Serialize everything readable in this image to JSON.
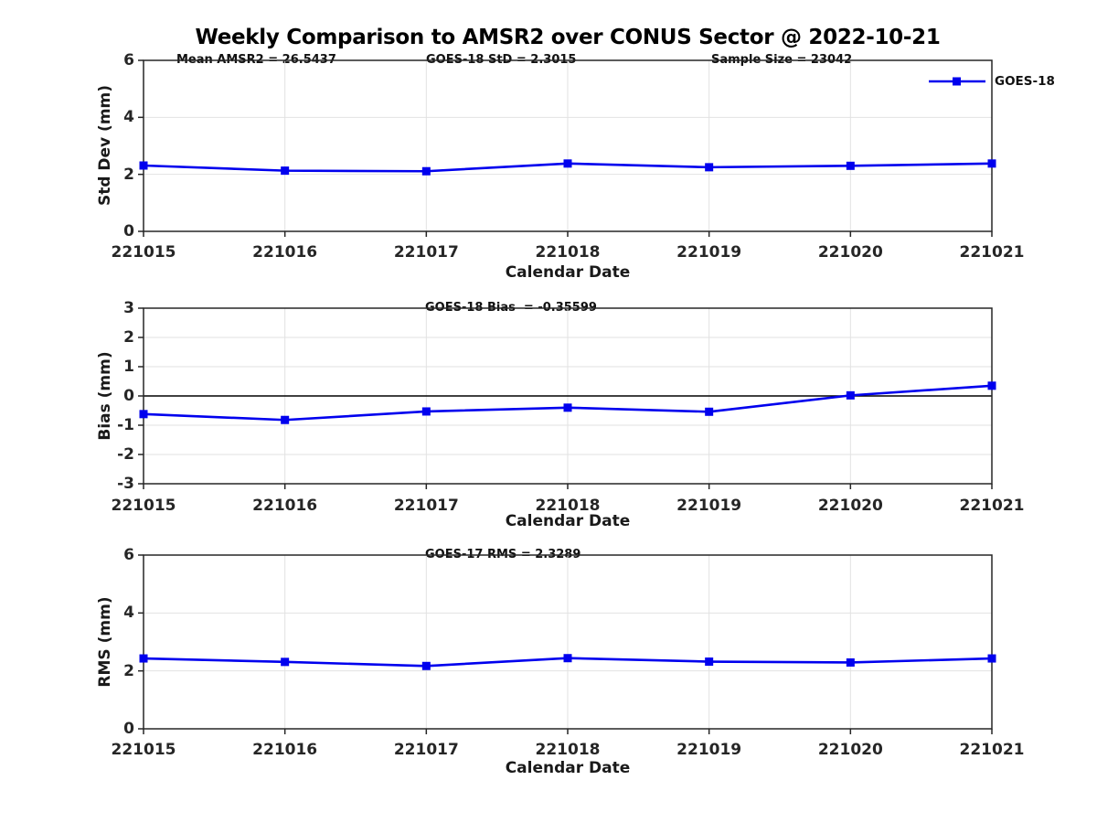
{
  "title": "Weekly Comparison to AMSR2 over CONUS Sector @ 2022-10-21",
  "legend": {
    "label": "GOES-18"
  },
  "colors": {
    "line": "#0000ee",
    "marker": "#0000ee",
    "grid": "#e2e2e2",
    "frame": "#262626",
    "zero_line": "#000000",
    "text": "#111111"
  },
  "chart_data": [
    {
      "type": "line",
      "panel": "std-dev",
      "annotations": [
        "Mean AMSR2 = 26.5437",
        "GOES-18 StD = 2.3015",
        "Sample Size = 23042"
      ],
      "x": [
        "221015",
        "221016",
        "221017",
        "221018",
        "221019",
        "221020",
        "221021"
      ],
      "series": [
        {
          "name": "GOES-18",
          "values": [
            2.31,
            2.13,
            2.11,
            2.38,
            2.25,
            2.3,
            2.38
          ]
        }
      ],
      "xlabel": "Calendar Date",
      "ylabel": "Std Dev (mm)",
      "ylim": [
        0,
        6
      ],
      "yticks": [
        0,
        2,
        4,
        6
      ],
      "grid": true,
      "zero_line": false,
      "legend_position": "top-right"
    },
    {
      "type": "line",
      "panel": "bias",
      "annotations": [
        "GOES-18 Bias  = -0.35599"
      ],
      "x": [
        "221015",
        "221016",
        "221017",
        "221018",
        "221019",
        "221020",
        "221021"
      ],
      "series": [
        {
          "name": "GOES-18",
          "values": [
            -0.62,
            -0.82,
            -0.53,
            -0.4,
            -0.54,
            0.02,
            0.35
          ]
        }
      ],
      "xlabel": "Calendar Date",
      "ylabel": "Bias (mm)",
      "ylim": [
        -3,
        3
      ],
      "yticks": [
        -3,
        -2,
        -1,
        0,
        1,
        2,
        3
      ],
      "grid": true,
      "zero_line": true,
      "legend_position": "none"
    },
    {
      "type": "line",
      "panel": "rms",
      "annotations": [
        "GOES-17 RMS = 2.3289"
      ],
      "x": [
        "221015",
        "221016",
        "221017",
        "221018",
        "221019",
        "221020",
        "221021"
      ],
      "series": [
        {
          "name": "GOES-18",
          "values": [
            2.43,
            2.31,
            2.17,
            2.44,
            2.32,
            2.29,
            2.43
          ]
        }
      ],
      "xlabel": "Calendar Date",
      "ylabel": "RMS (mm)",
      "ylim": [
        0,
        6
      ],
      "yticks": [
        0,
        2,
        4,
        6
      ],
      "grid": true,
      "zero_line": false,
      "legend_position": "none"
    }
  ]
}
